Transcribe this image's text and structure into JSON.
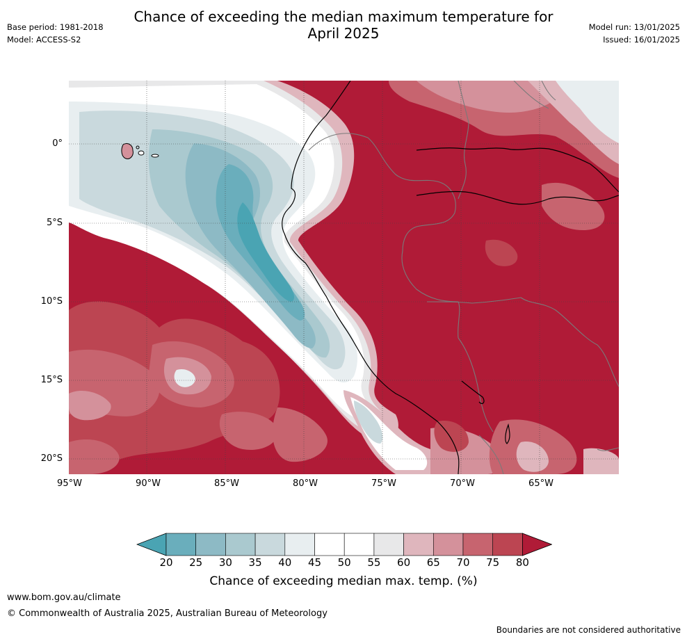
{
  "title": "Chance of exceeding the median maximum temperature for April 2025",
  "title_line1": "Chance of exceeding the median maximum temperature for",
  "title_line2": "April 2025",
  "base_period": "Base period: 1981-2018",
  "model": "Model: ACCESS-S2",
  "model_run": "Model run: 13/01/2025",
  "issued": "Issued: 16/01/2025",
  "map": {
    "lat_labels": [
      "0°",
      "5°S",
      "10°S",
      "15°S",
      "20°S"
    ],
    "lon_labels": [
      "95°W",
      "90°W",
      "85°W",
      "80°W",
      "75°W",
      "70°W",
      "65°W"
    ],
    "colors": {
      "strong_warm": "#b01b37",
      "ocean_cool": "#4aa4b3",
      "land_border": "#7a7a7a",
      "coastline": "#000000"
    }
  },
  "legend": {
    "ticks": [
      "20",
      "25",
      "30",
      "35",
      "40",
      "45",
      "50",
      "55",
      "60",
      "65",
      "70",
      "75",
      "80"
    ],
    "label": "Chance of exceeding median max. temp. (%)",
    "colors": [
      "#4aa4b3",
      "#6aaebc",
      "#8dbac5",
      "#aac9cf",
      "#c9d9dd",
      "#e8eef0",
      "#ffffff",
      "#ffffff",
      "#e8e8e9",
      "#dfb6bd",
      "#d4919b",
      "#c7646f",
      "#bc4552",
      "#b01b37"
    ]
  },
  "footer": {
    "url": "www.bom.gov.au/climate",
    "copyright": "© Commonwealth of Australia 2025, Australian Bureau of Meteorology",
    "disclaimer": "Boundaries are not considered authoritative"
  }
}
